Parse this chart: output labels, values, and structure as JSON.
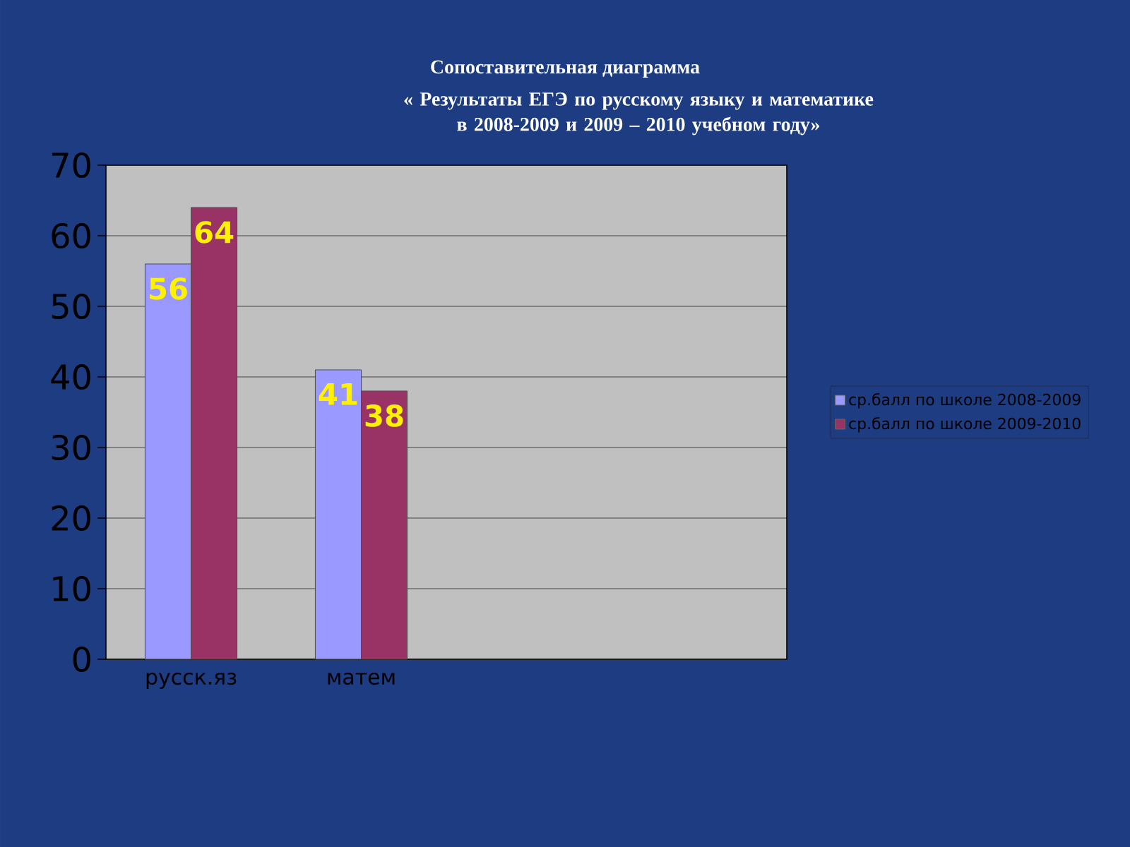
{
  "chart_data": {
    "type": "bar",
    "title": "Сопоставительная диаграмма",
    "subtitle": "« Результаты ЕГЭ по русскому языку и математике в 2008-2009 и 2009 – 2010 учебном году»",
    "categories": [
      "русск.яз",
      "матем",
      null,
      null
    ],
    "series": [
      {
        "name": "ср.балл по школе 2008-2009",
        "color": "#9999ff",
        "values": [
          56,
          41,
          null,
          null
        ]
      },
      {
        "name": "ср.балл по школе 2009-2010",
        "color": "#993366",
        "values": [
          64,
          38,
          null,
          null
        ]
      }
    ],
    "ylim": [
      0,
      70
    ],
    "yticks": [
      0,
      10,
      20,
      30,
      40,
      50,
      60,
      70
    ],
    "grid": "y",
    "legend": "right",
    "data_labels": true
  }
}
